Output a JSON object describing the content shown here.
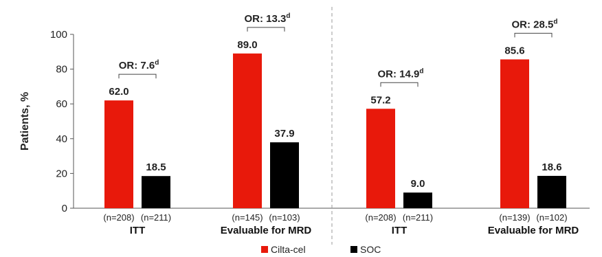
{
  "chart_data": {
    "type": "bar",
    "ylabel": "Patients, %",
    "ylim": [
      0,
      100
    ],
    "yticks": [
      "0",
      "20",
      "40",
      "60",
      "80",
      "100"
    ],
    "colors": {
      "Cilta-cel": "#e8190b",
      "SOC": "#000000"
    },
    "legend": [
      {
        "name": "Cilta-cel",
        "color": "#e8190b"
      },
      {
        "name": "SOC",
        "color": "#000000"
      }
    ],
    "groups": [
      {
        "label": "ITT",
        "n_labels": [
          "(n=208)",
          "(n=211)"
        ],
        "values": [
          62.0,
          18.5
        ],
        "value_labels": [
          "62.0",
          "18.5"
        ],
        "or_prefix": "OR: 7.6",
        "or_sup": "d"
      },
      {
        "label": "Evaluable for MRD",
        "n_labels": [
          "(n=145)",
          "(n=103)"
        ],
        "values": [
          89.0,
          37.9
        ],
        "value_labels": [
          "89.0",
          "37.9"
        ],
        "or_prefix": "OR: 13.3",
        "or_sup": "d"
      },
      {
        "label": "ITT",
        "n_labels": [
          "(n=208)",
          "(n=211)"
        ],
        "values": [
          57.2,
          9.0
        ],
        "value_labels": [
          "57.2",
          "9.0"
        ],
        "or_prefix": "OR: 14.9",
        "or_sup": "d"
      },
      {
        "label": "Evaluable for MRD",
        "n_labels": [
          "(n=139)",
          "(n=102)"
        ],
        "values": [
          85.6,
          18.6
        ],
        "value_labels": [
          "85.6",
          "18.6"
        ],
        "or_prefix": "OR: 28.5",
        "or_sup": "d"
      }
    ]
  }
}
